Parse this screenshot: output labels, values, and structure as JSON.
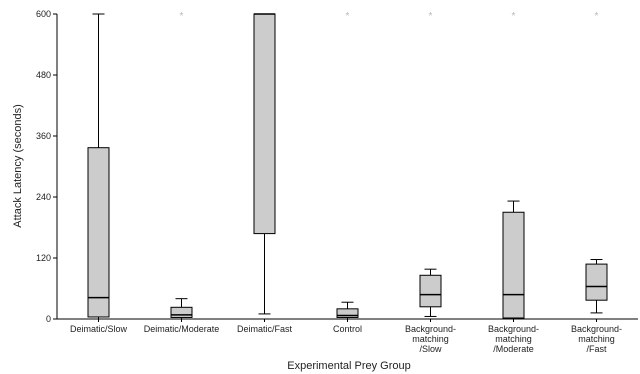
{
  "chart_data": {
    "type": "boxplot",
    "xlabel": "Experimental Prey Group",
    "ylabel": "Attack Latency (seconds)",
    "ylim": [
      0,
      600
    ],
    "yticks": [
      0,
      120,
      240,
      360,
      480,
      600
    ],
    "grid": false,
    "outlier_marker": "*",
    "colors": {
      "box_fill": "#cccccc",
      "stroke": "#000000",
      "outlier": "#b8b8b8"
    },
    "categories": [
      [
        "Deimatic/Slow"
      ],
      [
        "Deimatic/Moderate"
      ],
      [
        "Deimatic/Fast"
      ],
      [
        "Control"
      ],
      [
        "Background-",
        "matching",
        "/Slow"
      ],
      [
        "Background-",
        "matching",
        "/Moderate"
      ],
      [
        "Background-",
        "matching",
        "/Fast"
      ]
    ],
    "boxes": [
      {
        "whisker_low": 0,
        "q1": 4,
        "median": 42,
        "q3": 337,
        "whisker_high": 600,
        "outliers": []
      },
      {
        "whisker_low": 0,
        "q1": 3,
        "median": 8,
        "q3": 23,
        "whisker_high": 40,
        "outliers": [
          600
        ]
      },
      {
        "whisker_low": 10,
        "q1": 168,
        "median": 600,
        "q3": 600,
        "whisker_high": 600,
        "outliers": []
      },
      {
        "whisker_low": 0,
        "q1": 3,
        "median": 7,
        "q3": 20,
        "whisker_high": 33,
        "outliers": [
          600
        ]
      },
      {
        "whisker_low": 5,
        "q1": 24,
        "median": 48,
        "q3": 86,
        "whisker_high": 98,
        "outliers": [
          600
        ]
      },
      {
        "whisker_low": 0,
        "q1": 2,
        "median": 48,
        "q3": 210,
        "whisker_high": 232,
        "outliers": [
          600
        ]
      },
      {
        "whisker_low": 12,
        "q1": 37,
        "median": 64,
        "q3": 108,
        "whisker_high": 117,
        "outliers": [
          600
        ]
      }
    ]
  }
}
